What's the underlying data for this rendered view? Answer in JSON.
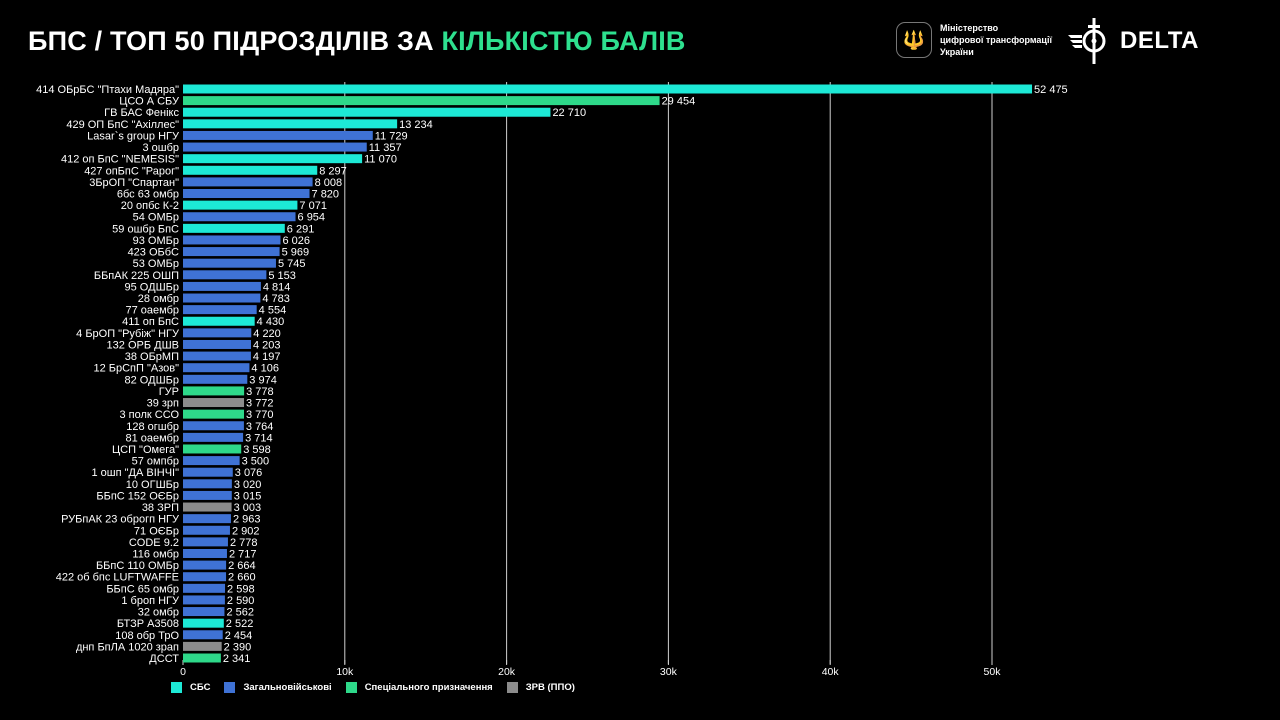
{
  "header": {
    "title_main": "БПС / ТОП 50 ПІДРОЗДІЛІВ ЗА ",
    "title_highlight": "КІЛЬКІСТЮ БАЛІВ",
    "ministry_lines": [
      "Міністерство",
      "цифрової трансформації",
      "України"
    ],
    "delta_logo": "DELTA"
  },
  "colors": {
    "СБС": "#1de9d6",
    "Загальновійськові": "#3f72d5",
    "Спеціального призначення": "#2ed98a",
    "ЗРВ (ППО)": "#8c8c8c",
    "title_highlight": "#2ee08f"
  },
  "chart_data": {
    "type": "bar",
    "orientation": "horizontal",
    "title": "БПС / ТОП 50 ПІДРОЗДІЛІВ ЗА КІЛЬКІСТЮ БАЛІВ",
    "xlim": [
      0,
      55000
    ],
    "x_ticks": [
      0,
      10000,
      20000,
      30000,
      40000,
      50000
    ],
    "x_tick_labels": [
      "0",
      "10k",
      "20k",
      "30k",
      "40k",
      "50k"
    ],
    "grid": "vertical",
    "legend_position": "bottom-left",
    "legend": [
      "СБС",
      "Загальновійськові",
      "Спеціального призначення",
      "ЗРВ (ППО)"
    ],
    "bars": [
      {
        "label": "414 ОБрБС \"Птахи Мадяра\"",
        "value": 52475,
        "group": "СБС"
      },
      {
        "label": "ЦСО А СБУ",
        "value": 29454,
        "group": "Спеціального призначення"
      },
      {
        "label": "ГВ БАС Фенікс",
        "value": 22710,
        "group": "СБС"
      },
      {
        "label": "429 ОП БпС \"Ахіллес\"",
        "value": 13234,
        "group": "СБС"
      },
      {
        "label": "Lasar`s group НГУ",
        "value": 11729,
        "group": "Загальновійськові"
      },
      {
        "label": "3 ошбр",
        "value": 11357,
        "group": "Загальновійськові"
      },
      {
        "label": "412 оп БпС \"NEMESIS\"",
        "value": 11070,
        "group": "СБС"
      },
      {
        "label": "427 опБпС \"Рарог\"",
        "value": 8297,
        "group": "СБС"
      },
      {
        "label": "3БрОП \"Спартан\"",
        "value": 8008,
        "group": "Загальновійськові"
      },
      {
        "label": "6бс 63 омбр",
        "value": 7820,
        "group": "Загальновійськові"
      },
      {
        "label": "20 опбс К-2",
        "value": 7071,
        "group": "СБС"
      },
      {
        "label": "54 ОМБр",
        "value": 6954,
        "group": "Загальновійськові"
      },
      {
        "label": "59 ошбр БпС",
        "value": 6291,
        "group": "СБС"
      },
      {
        "label": "93 ОМБр",
        "value": 6026,
        "group": "Загальновійськові"
      },
      {
        "label": "423 ОБбС",
        "value": 5969,
        "group": "Загальновійськові"
      },
      {
        "label": "53 ОМБр",
        "value": 5745,
        "group": "Загальновійськові"
      },
      {
        "label": "ББпАК 225 ОШП",
        "value": 5153,
        "group": "Загальновійськові"
      },
      {
        "label": "95 ОДШБр",
        "value": 4814,
        "group": "Загальновійськові"
      },
      {
        "label": "28 омбр",
        "value": 4783,
        "group": "Загальновійськові"
      },
      {
        "label": "77 оаембр",
        "value": 4554,
        "group": "Загальновійськові"
      },
      {
        "label": "411 оп БпС",
        "value": 4430,
        "group": "СБС"
      },
      {
        "label": "4 БрОП \"Рубіж\" НГУ",
        "value": 4220,
        "group": "Загальновійськові"
      },
      {
        "label": "132 ОРБ ДШВ",
        "value": 4203,
        "group": "Загальновійськові"
      },
      {
        "label": "38 ОБрМП",
        "value": 4197,
        "group": "Загальновійськові"
      },
      {
        "label": "12 БрСпП \"Азов\"",
        "value": 4106,
        "group": "Загальновійськові"
      },
      {
        "label": "82 ОДШБр",
        "value": 3974,
        "group": "Загальновійськові"
      },
      {
        "label": "ГУР",
        "value": 3778,
        "group": "Спеціального призначення"
      },
      {
        "label": "39 зрп",
        "value": 3772,
        "group": "ЗРВ (ППО)"
      },
      {
        "label": "3 полк ССО",
        "value": 3770,
        "group": "Спеціального призначення"
      },
      {
        "label": "128 огшбр",
        "value": 3764,
        "group": "Загальновійськові"
      },
      {
        "label": "81 оаембр",
        "value": 3714,
        "group": "Загальновійськові"
      },
      {
        "label": "ЦСП \"Омега\"",
        "value": 3598,
        "group": "Спеціального призначення"
      },
      {
        "label": "57 омпбр",
        "value": 3500,
        "group": "Загальновійськові"
      },
      {
        "label": "1 ошп \"ДА ВІНЧІ\"",
        "value": 3076,
        "group": "Загальновійськові"
      },
      {
        "label": "10 ОГШБр",
        "value": 3020,
        "group": "Загальновійськові"
      },
      {
        "label": "ББпС 152 ОЄБр",
        "value": 3015,
        "group": "Загальновійськові"
      },
      {
        "label": "38 ЗРП",
        "value": 3003,
        "group": "ЗРВ (ППО)"
      },
      {
        "label": "РУБпАК 23 оброгп НГУ",
        "value": 2963,
        "group": "Загальновійськові"
      },
      {
        "label": "71 ОЄБр",
        "value": 2902,
        "group": "Загальновійськові"
      },
      {
        "label": "CODE 9.2",
        "value": 2778,
        "group": "Загальновійськові"
      },
      {
        "label": "116 омбр",
        "value": 2717,
        "group": "Загальновійськові"
      },
      {
        "label": "ББпС 110 ОМБр",
        "value": 2664,
        "group": "Загальновійськові"
      },
      {
        "label": "422 об бпс LUFTWAFFE",
        "value": 2660,
        "group": "Загальновійськові"
      },
      {
        "label": "ББпС 65 омбр",
        "value": 2598,
        "group": "Загальновійськові"
      },
      {
        "label": "1 броп НГУ",
        "value": 2590,
        "group": "Загальновійськові"
      },
      {
        "label": "32 омбр",
        "value": 2562,
        "group": "Загальновійськові"
      },
      {
        "label": "БТЗР А3508",
        "value": 2522,
        "group": "СБС"
      },
      {
        "label": "108 обр ТрО",
        "value": 2454,
        "group": "Загальновійськові"
      },
      {
        "label": "днп БпЛА 1020 зрап",
        "value": 2390,
        "group": "ЗРВ (ППО)"
      },
      {
        "label": "ДССТ",
        "value": 2341,
        "group": "Спеціального призначення"
      }
    ]
  }
}
